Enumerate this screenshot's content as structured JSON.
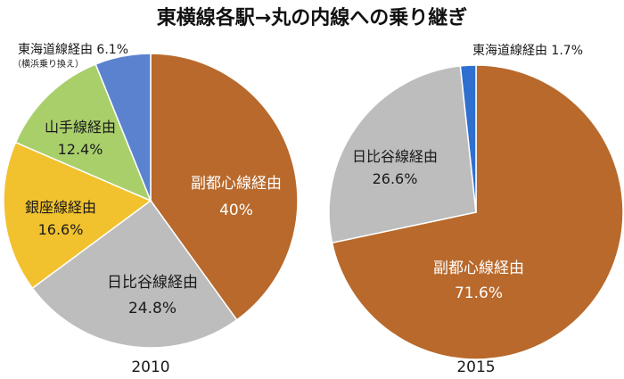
{
  "title": "東横線各駅→丸の内線への乗り継ぎ",
  "chart_data": [
    {
      "type": "pie",
      "label": "2010",
      "slices": [
        {
          "name": "副都心線経由",
          "value": 40,
          "value_label": "40%",
          "color": "#B8692B"
        },
        {
          "name": "日比谷線経由",
          "value": 24.8,
          "value_label": "24.8%",
          "color": "#BDBDBD"
        },
        {
          "name": "銀座線経由",
          "value": 16.6,
          "value_label": "16.6%",
          "color": "#F2C12E"
        },
        {
          "name": "山手線経由",
          "value": 12.4,
          "value_label": "12.4%",
          "color": "#A9CF6B"
        },
        {
          "name": "東海道線経由",
          "value": 6.1,
          "value_label": "6.1%",
          "note": "（横浜乗り換え）",
          "color": "#5B82CF"
        }
      ]
    },
    {
      "type": "pie",
      "label": "2015",
      "slices": [
        {
          "name": "副都心線経由",
          "value": 71.6,
          "value_label": "71.6%",
          "color": "#B8692B"
        },
        {
          "name": "日比谷線経由",
          "value": 26.6,
          "value_label": "26.6%",
          "color": "#BDBDBD"
        },
        {
          "name": "東海道線経由",
          "value": 1.7,
          "value_label": "1.7%",
          "color": "#2F6FD0"
        }
      ]
    }
  ]
}
